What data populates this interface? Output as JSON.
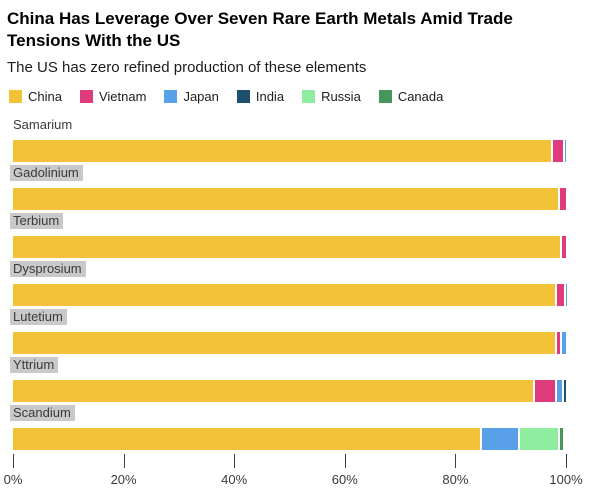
{
  "header": {
    "title_line1": "China Has Leverage Over Seven Rare Earth Metals Amid Trade",
    "title_line2": "Tensions With the US",
    "subtitle": "The US has zero refined production of these elements"
  },
  "colors": {
    "china": "#F2C338",
    "vietnam": "#DF3A7C",
    "japan": "#58A1E8",
    "india": "#1F4F6E",
    "russia": "#8FEDA0",
    "canada": "#47975C",
    "label_highlight": "#C9C9C9"
  },
  "legend": [
    {
      "label": "China",
      "color": "#F2C338"
    },
    {
      "label": "Vietnam",
      "color": "#DF3A7C"
    },
    {
      "label": "Japan",
      "color": "#58A1E8"
    },
    {
      "label": "India",
      "color": "#1F4F6E"
    },
    {
      "label": "Russia",
      "color": "#8FEDA0"
    },
    {
      "label": "Canada",
      "color": "#47975C"
    }
  ],
  "chart_data": {
    "type": "bar",
    "orientation": "horizontal_stacked",
    "unit": "% share of refined production",
    "title": "China Has Leverage Over Seven Rare Earth Metals Amid Trade Tensions With the US",
    "subtitle": "The US has zero refined production of these elements",
    "categories": [
      "Samarium",
      "Gadolinium",
      "Terbium",
      "Dysprosium",
      "Lutetium",
      "Yttrium",
      "Scandium"
    ],
    "highlighted_category_labels": [
      "Gadolinium",
      "Terbium",
      "Dysprosium",
      "Lutetium",
      "Yttrium",
      "Scandium"
    ],
    "series": [
      {
        "name": "China",
        "color": "#F2C338",
        "values": [
          97.3,
          98.6,
          99.0,
          98.1,
          98.1,
          94.0,
          84.5
        ]
      },
      {
        "name": "Vietnam",
        "color": "#DF3A7C",
        "values": [
          2.1,
          1.4,
          1.0,
          1.5,
          0.9,
          4.0,
          0
        ]
      },
      {
        "name": "Japan",
        "color": "#58A1E8",
        "values": [
          0.6,
          0,
          0,
          0.4,
          1.0,
          1.2,
          6.8
        ]
      },
      {
        "name": "India",
        "color": "#1F4F6E",
        "values": [
          0,
          0,
          0,
          0,
          0,
          0.8,
          0
        ]
      },
      {
        "name": "Russia",
        "color": "#8FEDA0",
        "values": [
          0,
          0,
          0,
          0,
          0,
          0,
          7.2
        ]
      },
      {
        "name": "Canada",
        "color": "#47975C",
        "values": [
          0,
          0,
          0,
          0,
          0,
          0,
          1.0
        ]
      }
    ],
    "x_axis": {
      "tick_labels": [
        "0%",
        "20%",
        "40%",
        "60%",
        "80%",
        "100%"
      ],
      "range": [
        0,
        100
      ]
    },
    "legend_position": "top",
    "grid": false
  }
}
